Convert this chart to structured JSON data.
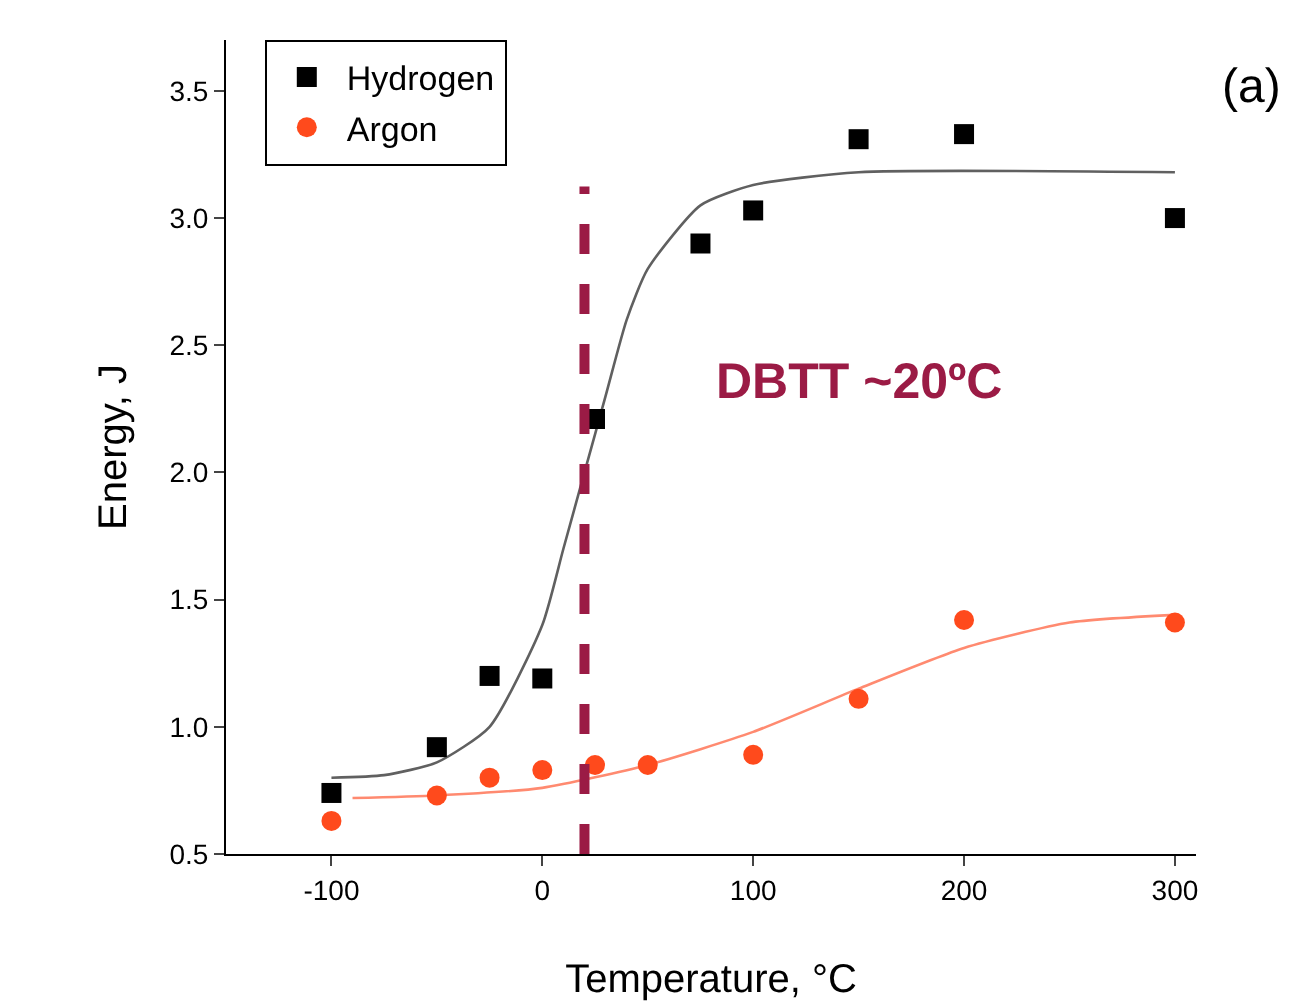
{
  "chart_data": {
    "type": "scatter",
    "xlabel": "Temperature, °C",
    "ylabel": "Energy, J",
    "xlim": [
      -150,
      310
    ],
    "xticks": [
      -100,
      0,
      100,
      200,
      300
    ],
    "ylim": [
      0.5,
      3.7
    ],
    "yticks": [
      0.5,
      {
        "value": 1,
        "label": "1.0"
      },
      1.5,
      {
        "value": 2,
        "label": "2.0"
      },
      2.5,
      {
        "value": 3,
        "label": "3.0"
      },
      3.5
    ],
    "grid": false,
    "legend": "top left",
    "series": [
      {
        "name": "Hydrogen",
        "color": "#000000",
        "marker": "square",
        "x": [
          -100,
          -50,
          -25,
          0,
          25,
          75,
          100,
          150,
          200,
          300
        ],
        "values": [
          0.74,
          0.92,
          1.2,
          1.19,
          2.21,
          2.9,
          3.03,
          3.31,
          3.33,
          3.0
        ]
      },
      {
        "name": "Argon",
        "color": "#ff4a1c",
        "marker": "circle",
        "x": [
          -100,
          -50,
          -25,
          0,
          25,
          50,
          100,
          150,
          200,
          300
        ],
        "values": [
          0.63,
          0.73,
          0.8,
          0.83,
          0.85,
          0.85,
          0.89,
          1.11,
          1.42,
          1.41
        ]
      },
      {
        "type": "line",
        "color": "#606060",
        "marker": "none",
        "x": [
          -100,
          -75,
          -50,
          -25,
          0,
          10,
          20,
          30,
          40,
          50,
          75,
          100,
          150,
          300
        ],
        "values": [
          0.8,
          0.81,
          0.86,
          1.0,
          1.4,
          1.7,
          2.0,
          2.3,
          2.6,
          2.8,
          3.05,
          3.13,
          3.18,
          3.18
        ]
      },
      {
        "type": "line",
        "color": "#ff8a70",
        "marker": "none",
        "x": [
          -90,
          -50,
          0,
          50,
          100,
          150,
          200,
          250,
          300
        ],
        "values": [
          0.72,
          0.73,
          0.76,
          0.85,
          0.98,
          1.15,
          1.31,
          1.41,
          1.44
        ]
      }
    ],
    "ref_lines": [
      {
        "axis": "x",
        "value": 20,
        "label": "DBTT ~20ºC",
        "color": "#9b1b45",
        "line_style": "dashed"
      }
    ],
    "annotations": [
      "(a)"
    ]
  }
}
